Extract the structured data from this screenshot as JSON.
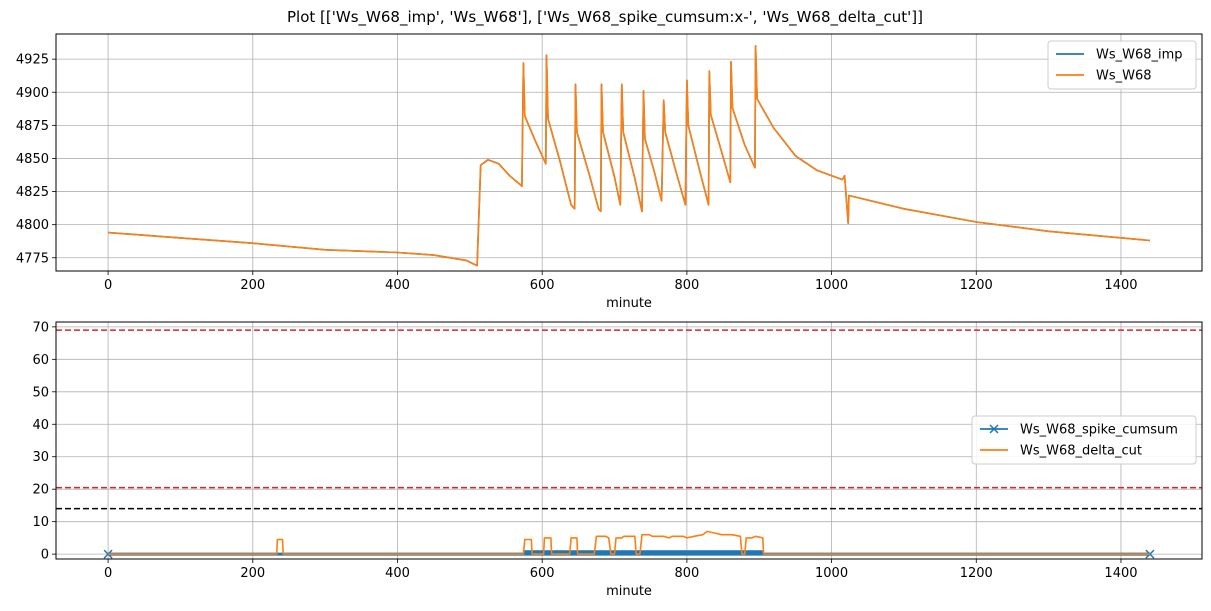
{
  "figure": {
    "suptitle": "Plot [['Ws_W68_imp', 'Ws_W68'], ['Ws_W68_spike_cumsum:x-', 'Ws_W68_delta_cut']]"
  },
  "colors": {
    "blue": "#1f77b4",
    "orange": "#ff7f0e",
    "red": "#d62728",
    "black": "#000000",
    "grid": "#b0b0b0"
  },
  "chart_data": [
    {
      "type": "line",
      "xlabel": "minute",
      "ylabel": "",
      "xlim": [
        -72,
        1512
      ],
      "ylim": [
        4765,
        4944
      ],
      "xticks": [
        0,
        200,
        400,
        600,
        800,
        1000,
        1200,
        1400
      ],
      "yticks": [
        4775,
        4800,
        4825,
        4850,
        4875,
        4900,
        4925
      ],
      "grid": true,
      "legend_position": "top-right",
      "series": [
        {
          "name": "Ws_W68_imp",
          "color": "#1f77b4",
          "points": [
            [
              0,
              4794
            ],
            [
              100,
              4790
            ],
            [
              200,
              4786
            ],
            [
              300,
              4781
            ],
            [
              400,
              4779
            ],
            [
              450,
              4777
            ],
            [
              495,
              4773
            ],
            [
              510,
              4769
            ],
            [
              515,
              4845
            ],
            [
              525,
              4849
            ],
            [
              540,
              4846
            ],
            [
              555,
              4837
            ],
            [
              570,
              4830
            ],
            [
              572,
              4829
            ],
            [
              574,
              4922
            ],
            [
              576,
              4882
            ],
            [
              590,
              4864
            ],
            [
              605,
              4846
            ],
            [
              606,
              4928
            ],
            [
              608,
              4880
            ],
            [
              625,
              4847
            ],
            [
              640,
              4815
            ],
            [
              645,
              4812
            ],
            [
              646,
              4906
            ],
            [
              648,
              4870
            ],
            [
              665,
              4838
            ],
            [
              678,
              4812
            ],
            [
              681,
              4810
            ],
            [
              682,
              4906
            ],
            [
              684,
              4870
            ],
            [
              700,
              4836
            ],
            [
              708,
              4815
            ],
            [
              710,
              4906
            ],
            [
              712,
              4870
            ],
            [
              728,
              4835
            ],
            [
              738,
              4810
            ],
            [
              740,
              4901
            ],
            [
              742,
              4865
            ],
            [
              755,
              4840
            ],
            [
              765,
              4818
            ],
            [
              768,
              4894
            ],
            [
              770,
              4870
            ],
            [
              785,
              4840
            ],
            [
              798,
              4815
            ],
            [
              800,
              4909
            ],
            [
              802,
              4875
            ],
            [
              818,
              4840
            ],
            [
              830,
              4815
            ],
            [
              831,
              4916
            ],
            [
              833,
              4883
            ],
            [
              848,
              4855
            ],
            [
              860,
              4832
            ],
            [
              861,
              4923
            ],
            [
              863,
              4888
            ],
            [
              880,
              4860
            ],
            [
              894,
              4843
            ],
            [
              895,
              4935
            ],
            [
              897,
              4895
            ],
            [
              920,
              4873
            ],
            [
              950,
              4852
            ],
            [
              980,
              4841
            ],
            [
              1005,
              4836
            ],
            [
              1015,
              4834
            ],
            [
              1018,
              4837
            ],
            [
              1023,
              4801
            ],
            [
              1024,
              4822
            ],
            [
              1100,
              4812
            ],
            [
              1200,
              4802
            ],
            [
              1300,
              4795
            ],
            [
              1440,
              4788
            ]
          ]
        },
        {
          "name": "Ws_W68",
          "color": "#ff7f0e",
          "points": [
            [
              0,
              4794
            ],
            [
              100,
              4790
            ],
            [
              200,
              4786
            ],
            [
              300,
              4781
            ],
            [
              400,
              4779
            ],
            [
              450,
              4777
            ],
            [
              495,
              4773
            ],
            [
              510,
              4769
            ],
            [
              515,
              4845
            ],
            [
              525,
              4849
            ],
            [
              540,
              4846
            ],
            [
              555,
              4837
            ],
            [
              570,
              4830
            ],
            [
              572,
              4829
            ],
            [
              574,
              4922
            ],
            [
              576,
              4882
            ],
            [
              590,
              4864
            ],
            [
              605,
              4846
            ],
            [
              606,
              4928
            ],
            [
              608,
              4880
            ],
            [
              625,
              4847
            ],
            [
              640,
              4815
            ],
            [
              645,
              4812
            ],
            [
              646,
              4906
            ],
            [
              648,
              4870
            ],
            [
              665,
              4838
            ],
            [
              678,
              4812
            ],
            [
              681,
              4810
            ],
            [
              682,
              4906
            ],
            [
              684,
              4870
            ],
            [
              700,
              4836
            ],
            [
              708,
              4815
            ],
            [
              710,
              4906
            ],
            [
              712,
              4870
            ],
            [
              728,
              4835
            ],
            [
              738,
              4810
            ],
            [
              740,
              4901
            ],
            [
              742,
              4865
            ],
            [
              755,
              4840
            ],
            [
              765,
              4818
            ],
            [
              768,
              4894
            ],
            [
              770,
              4870
            ],
            [
              785,
              4840
            ],
            [
              798,
              4815
            ],
            [
              800,
              4909
            ],
            [
              802,
              4875
            ],
            [
              818,
              4840
            ],
            [
              830,
              4815
            ],
            [
              831,
              4916
            ],
            [
              833,
              4883
            ],
            [
              848,
              4855
            ],
            [
              860,
              4832
            ],
            [
              861,
              4923
            ],
            [
              863,
              4888
            ],
            [
              880,
              4860
            ],
            [
              894,
              4843
            ],
            [
              895,
              4935
            ],
            [
              897,
              4895
            ],
            [
              920,
              4873
            ],
            [
              950,
              4852
            ],
            [
              980,
              4841
            ],
            [
              1005,
              4836
            ],
            [
              1015,
              4834
            ],
            [
              1018,
              4837
            ],
            [
              1023,
              4801
            ],
            [
              1024,
              4822
            ],
            [
              1100,
              4812
            ],
            [
              1200,
              4802
            ],
            [
              1300,
              4795
            ],
            [
              1440,
              4788
            ]
          ]
        }
      ]
    },
    {
      "type": "line",
      "xlabel": "minute",
      "ylabel": "",
      "xlim": [
        -72,
        1512
      ],
      "ylim": [
        -1.5,
        71.5
      ],
      "xticks": [
        0,
        200,
        400,
        600,
        800,
        1000,
        1200,
        1400
      ],
      "yticks": [
        0,
        10,
        20,
        30,
        40,
        50,
        60,
        70
      ],
      "grid": true,
      "legend_position": "center-right",
      "hlines": [
        {
          "y": 69,
          "color": "#d62728",
          "style": "dashed"
        },
        {
          "y": 20.5,
          "color": "#d62728",
          "style": "dashed"
        },
        {
          "y": 14,
          "color": "#000000",
          "style": "dashed"
        }
      ],
      "series": [
        {
          "name": "Ws_W68_spike_cumsum",
          "color": "#1f77b4",
          "marker": "x",
          "baseline": 0,
          "dense_band": {
            "x_start": 575,
            "x_end": 905,
            "y_max": 1.2
          },
          "x_range": [
            0,
            1440
          ]
        },
        {
          "name": "Ws_W68_delta_cut",
          "color": "#ff7f0e",
          "points": [
            [
              0,
              0
            ],
            [
              233,
              0
            ],
            [
              234,
              4.5
            ],
            [
              241,
              4.5
            ],
            [
              242,
              0
            ],
            [
              574,
              0
            ],
            [
              576,
              4.5
            ],
            [
              585,
              4.5
            ],
            [
              586,
              0
            ],
            [
              602,
              0
            ],
            [
              603,
              5
            ],
            [
              612,
              5
            ],
            [
              613,
              0
            ],
            [
              638,
              0
            ],
            [
              640,
              5
            ],
            [
              648,
              5
            ],
            [
              649,
              0
            ],
            [
              672,
              0
            ],
            [
              675,
              5.5
            ],
            [
              688,
              5.5
            ],
            [
              692,
              5
            ],
            [
              695,
              0
            ],
            [
              700,
              0
            ],
            [
              702,
              5
            ],
            [
              710,
              5
            ],
            [
              713,
              5.5
            ],
            [
              728,
              5.5
            ],
            [
              730,
              0
            ],
            [
              735,
              0
            ],
            [
              738,
              6
            ],
            [
              748,
              6
            ],
            [
              752,
              5.5
            ],
            [
              768,
              5.5
            ],
            [
              775,
              5
            ],
            [
              780,
              5.5
            ],
            [
              795,
              5.5
            ],
            [
              800,
              5
            ],
            [
              810,
              5.5
            ],
            [
              822,
              6
            ],
            [
              828,
              7
            ],
            [
              838,
              6.5
            ],
            [
              848,
              6
            ],
            [
              862,
              6
            ],
            [
              874,
              5.5
            ],
            [
              876,
              0
            ],
            [
              880,
              0
            ],
            [
              882,
              5
            ],
            [
              890,
              5
            ],
            [
              895,
              5.5
            ],
            [
              905,
              5
            ],
            [
              906,
              0
            ],
            [
              1440,
              0
            ]
          ]
        }
      ]
    }
  ]
}
